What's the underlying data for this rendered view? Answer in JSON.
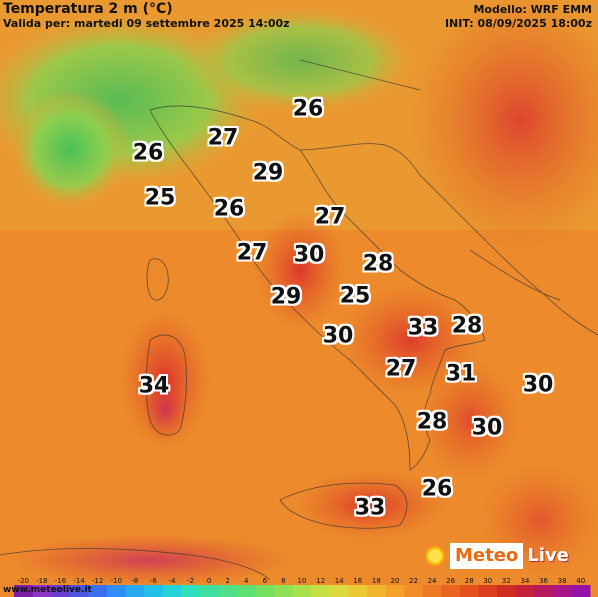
{
  "header": {
    "title": "Temperatura 2 m (°C)",
    "valid": "Valida per: martedi 09 settembre 2025 14:00z",
    "model": "Modello: WRF EMM",
    "init": "INIT: 08/09/2025 18:00z"
  },
  "city_values": [
    "26",
    "27",
    "26",
    "29",
    "25",
    "26",
    "27",
    "27",
    "30",
    "28",
    "29",
    "25",
    "30",
    "33",
    "28",
    "27",
    "31",
    "30",
    "34",
    "28",
    "30",
    "26",
    "33"
  ],
  "legend": {
    "ticks": [
      "-20",
      "-18",
      "-16",
      "-14",
      "-12",
      "-10",
      "-8",
      "-6",
      "-4",
      "-2",
      "0",
      "2",
      "4",
      "6",
      "8",
      "10",
      "12",
      "14",
      "16",
      "18",
      "20",
      "22",
      "24",
      "26",
      "28",
      "30",
      "32",
      "34",
      "36",
      "38",
      "40"
    ],
    "colors": [
      "#7a1fa2",
      "#8e35c9",
      "#6a40d0",
      "#4a55e0",
      "#3a70f0",
      "#2f8ef5",
      "#2aa8f0",
      "#22c0e8",
      "#24d4d8",
      "#2ee0bc",
      "#3ee0a0",
      "#4ee08a",
      "#5ee073",
      "#74e05f",
      "#8fe054",
      "#a8e04c",
      "#c4e044",
      "#dcd93c",
      "#eac934",
      "#f1b52e",
      "#f4a12a",
      "#f28e28",
      "#ef7a25",
      "#ea6522",
      "#e3511f",
      "#da3e1d",
      "#d02d22",
      "#c4213a",
      "#b81a60",
      "#a8168a",
      "#9412aa"
    ]
  },
  "site": "www.meteolive.it",
  "logo": {
    "meteo": "Meteo",
    "live": "Live"
  }
}
